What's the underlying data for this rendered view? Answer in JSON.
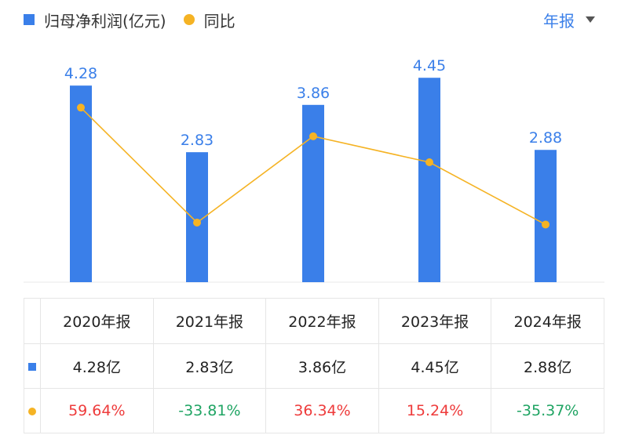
{
  "legend": {
    "bar_label": "归母净利润(亿元)",
    "line_label": "同比"
  },
  "period_selector": {
    "label": "年报"
  },
  "colors": {
    "bar": "#3a7fe9",
    "line": "#f5b324",
    "positive": "#ee3b3b",
    "negative": "#1fa463"
  },
  "chart_data": {
    "type": "bar",
    "categories": [
      "2020年报",
      "2021年报",
      "2022年报",
      "2023年报",
      "2024年报"
    ],
    "series": [
      {
        "name": "归母净利润(亿元)",
        "type": "bar",
        "values": [
          4.28,
          2.83,
          3.86,
          4.45,
          2.88
        ]
      },
      {
        "name": "同比",
        "type": "line",
        "values": [
          59.64,
          -33.81,
          36.34,
          15.24,
          -35.37
        ]
      }
    ],
    "bar_labels": [
      "4.28",
      "2.83",
      "3.86",
      "4.45",
      "2.88"
    ],
    "legend_position": "top-left",
    "grid": false
  },
  "table": {
    "headers": [
      "2020年报",
      "2021年报",
      "2022年报",
      "2023年报",
      "2024年报"
    ],
    "profit_row": [
      "4.28亿",
      "2.83亿",
      "3.86亿",
      "4.45亿",
      "2.88亿"
    ],
    "yoy_row": [
      "59.64%",
      "-33.81%",
      "36.34%",
      "15.24%",
      "-35.37%"
    ]
  }
}
